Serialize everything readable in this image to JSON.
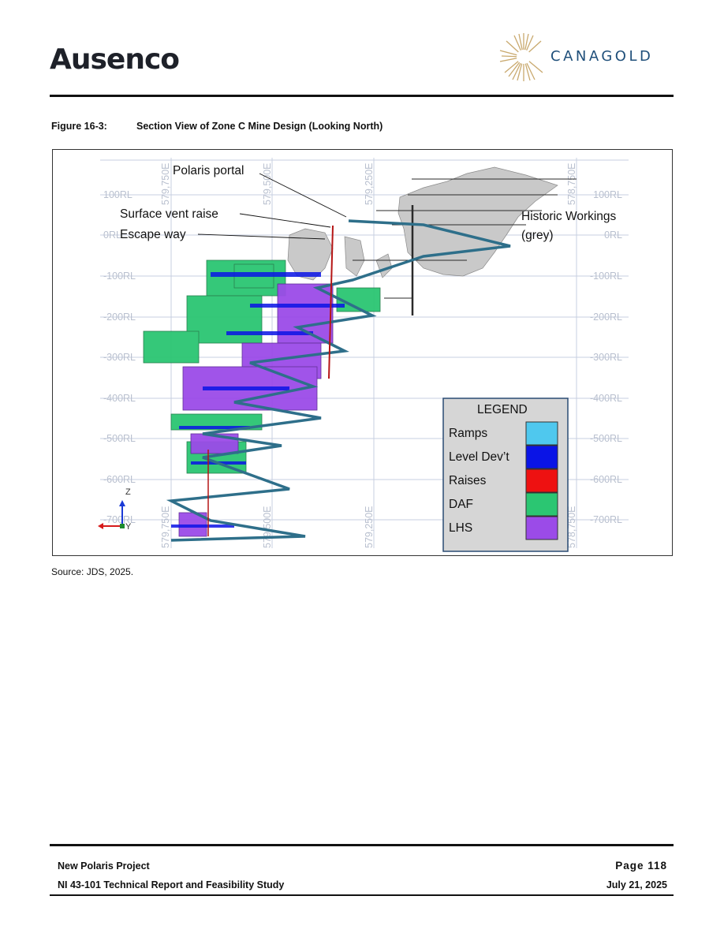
{
  "header": {
    "left_logo": "Ausenco",
    "right_logo": "CANAGOLD"
  },
  "figure": {
    "number": "Figure 16-3:",
    "title": "Section View of Zone C Mine Design (Looking North)",
    "source": "Source: JDS, 2025."
  },
  "diagram": {
    "elevation_labels": [
      "100RL",
      "0RL",
      "-100RL",
      "-200RL",
      "-300RL",
      "-400RL",
      "-500RL",
      "-600RL",
      "-700RL"
    ],
    "easting_labels": [
      "579,750E",
      "579,500E",
      "579,250E",
      "578,750E"
    ],
    "callouts": {
      "portal": "Polaris portal",
      "vent": "Surface vent raise",
      "escape": "Escape way",
      "historic_line1": "Historic Workings",
      "historic_line2": "(grey)"
    },
    "axis_labels": {
      "z": "Z",
      "y": "Y"
    },
    "legend": {
      "title": "LEGEND",
      "items": [
        {
          "label": "Ramps",
          "color": "#4fc8ee"
        },
        {
          "label": "Level Dev’t",
          "color": "#0a14e6"
        },
        {
          "label": "Raises",
          "color": "#ee1111"
        },
        {
          "label": "DAF",
          "color": "#2bc672"
        },
        {
          "label": "LHS",
          "color": "#9b4be8"
        }
      ]
    }
  },
  "footer": {
    "project": "New Polaris Project",
    "report": "NI 43-101 Technical Report and Feasibility Study",
    "page": "Page 118",
    "date": "July 21, 2025"
  },
  "colors": {
    "ramp": "#2e6f8a",
    "historic": "#c9c9c9",
    "grid": "#c7cfe0",
    "brand_blue": "#1f4f7a",
    "brand_gold": "#c9a96e"
  }
}
